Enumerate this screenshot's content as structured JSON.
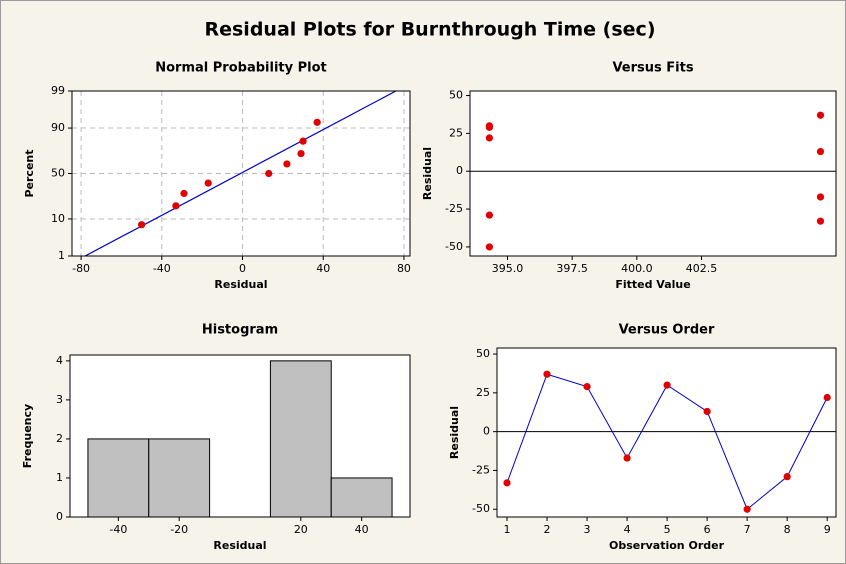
{
  "title": "Residual Plots for Burnthrough Time (sec)",
  "chart_data": [
    {
      "type": "scatter",
      "title": "Normal Probability Plot",
      "xlabel": "Residual",
      "ylabel": "Percent",
      "x": [
        -50,
        -33,
        -29,
        -17,
        13,
        22,
        29,
        30,
        37
      ],
      "values": [
        7.45,
        18.09,
        28.72,
        39.36,
        50,
        60.64,
        71.28,
        81.91,
        92.55
      ],
      "yscale": "probability",
      "grid": true,
      "color": "#e00000",
      "fit_line": {
        "x": [
          -78,
          76
        ],
        "values": [
          1,
          99
        ],
        "color": "#0000cc"
      },
      "xlim": [
        -84.5,
        83
      ],
      "xticks": [
        -80,
        -40,
        0,
        40,
        80
      ],
      "ylim": [
        1,
        99
      ],
      "yticks": [
        1,
        10,
        50,
        90,
        99
      ]
    },
    {
      "type": "scatter",
      "title": "Versus Fits",
      "xlabel": "Fitted Value",
      "ylabel": "Residual",
      "x": [
        407.1,
        407.1,
        394.3,
        407.1,
        394.3,
        407.1,
        394.3,
        394.3,
        394.3
      ],
      "values": [
        -33,
        37,
        29,
        -17,
        30,
        13,
        -50,
        -29,
        22
      ],
      "reference_line": 0,
      "color": "#e00000",
      "xlim": [
        393.55,
        407.7
      ],
      "xticks": [
        {
          "value": 395,
          "label": "395.0"
        },
        {
          "value": 397.5,
          "label": "397.5"
        },
        {
          "value": 400,
          "label": "400.0"
        },
        {
          "value": 402.5,
          "label": "402.5"
        }
      ],
      "ylim": [
        -56,
        53
      ],
      "yticks": [
        -50,
        -25,
        0,
        25,
        50
      ]
    },
    {
      "type": "histogram",
      "title": "Histogram",
      "xlabel": "Residual",
      "ylabel": "Frequency",
      "bins": [
        -50,
        -30,
        -10,
        10,
        30,
        50
      ],
      "values": [
        2,
        2,
        0,
        4,
        1
      ],
      "color": "#c0c0c0",
      "xlim": [
        -55.9,
        55.9
      ],
      "xticks": [
        -40,
        -20,
        20,
        40
      ],
      "ylim": [
        0,
        4.15
      ],
      "yticks": [
        0,
        1,
        2,
        3,
        4
      ]
    },
    {
      "type": "line",
      "title": "Versus Order",
      "xlabel": "Observation Order",
      "ylabel": "Residual",
      "x": [
        1,
        2,
        3,
        4,
        5,
        6,
        7,
        8,
        9
      ],
      "values": [
        -33,
        37,
        29,
        -17,
        30,
        13,
        -50,
        -29,
        22
      ],
      "reference_line": 0,
      "color": "#0000cc",
      "marker_color": "#e00000",
      "xlim": [
        0.75,
        9.22
      ],
      "xticks": [
        1,
        2,
        3,
        4,
        5,
        6,
        7,
        8,
        9
      ],
      "ylim": [
        -55,
        53.9
      ],
      "yticks": [
        -50,
        -25,
        0,
        25,
        50
      ]
    }
  ]
}
